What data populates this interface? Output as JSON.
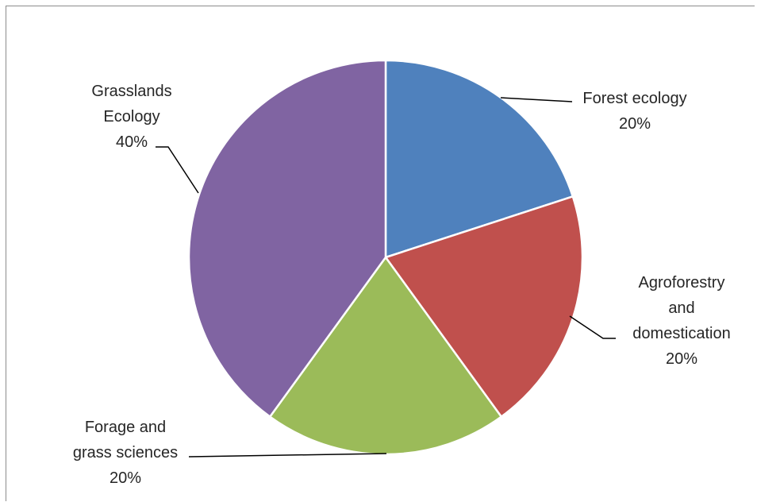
{
  "chart_data": {
    "type": "pie",
    "title": "",
    "slices": [
      {
        "label": "Forest ecology",
        "label_lines": [
          "Forest ecology",
          "20%"
        ],
        "value": 20,
        "color": "#4f81bd"
      },
      {
        "label": "Agroforestry and domestication",
        "label_lines": [
          "Agroforestry",
          "and",
          "domestication",
          "20%"
        ],
        "value": 20,
        "color": "#c0504d"
      },
      {
        "label": "Forage and grass sciences",
        "label_lines": [
          "Forage and",
          "grass sciences",
          "20%"
        ],
        "value": 20,
        "color": "#9bbb59"
      },
      {
        "label": "Grasslands Ecology",
        "label_lines": [
          "Grasslands",
          "Ecology",
          "40%"
        ],
        "value": 40,
        "color": "#8064a2"
      }
    ],
    "start_angle": "12 o'clock",
    "direction": "clockwise",
    "legend": "none",
    "data_labels": "outside with leader lines"
  }
}
